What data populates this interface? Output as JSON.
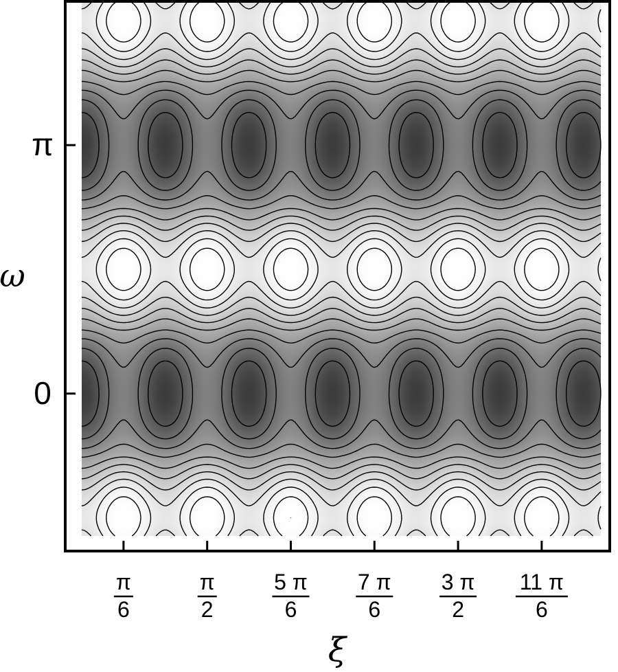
{
  "chart_data": {
    "type": "heatmap",
    "title": "",
    "xlabel": "ξ",
    "ylabel": "ω",
    "xlim": [
      0,
      6.5
    ],
    "ylim": [
      -1.8,
      4.95
    ],
    "x_ticks": [
      {
        "value": 0.5236,
        "num": "π",
        "den": "6"
      },
      {
        "value": 1.5708,
        "num": "π",
        "den": "2"
      },
      {
        "value": 2.618,
        "num": "5 π",
        "den": "6"
      },
      {
        "value": 3.6652,
        "num": "7 π",
        "den": "6"
      },
      {
        "value": 4.7124,
        "num": "3 π",
        "den": "2"
      },
      {
        "value": 5.7596,
        "num": "11 π",
        "den": "6"
      }
    ],
    "y_ticks": [
      {
        "value": 0,
        "label": "0"
      },
      {
        "value": 3.1416,
        "label": "π"
      }
    ],
    "colormap": [
      "#ffffff",
      "#3c3c3c"
    ],
    "contour_levels": 10,
    "field": "periodic in ξ (period π/3) and ω (period π); dark bands centered at ω = 0 and ω = π, bright islands at ω = π/2 and ω = 3π/2 offset by π/6 in ξ",
    "minima_dark_centers_x": [
      0.5236,
      1.5708,
      2.618,
      3.6652,
      4.7124,
      5.7596
    ],
    "maxima_light_centers_x": [
      0,
      1.0472,
      2.0944,
      3.1416,
      4.1888,
      5.236,
      6.2832
    ],
    "grid": false,
    "legend": "none"
  }
}
